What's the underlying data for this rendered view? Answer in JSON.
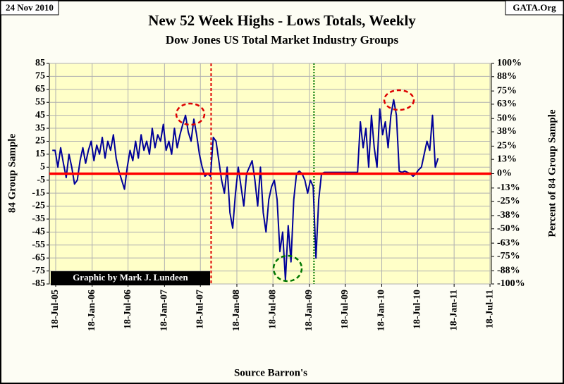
{
  "chart_data": {
    "type": "line",
    "stamp": "24 Nov 2010",
    "source_tag": "GATA.Org",
    "title": "New 52 Week Highs - Lows Totals, Weekly",
    "subtitle": "Dow Jones US Total Market Industry Groups",
    "ylabel": "84 Group Sample",
    "y2label": "Percent of 84 Group Sample",
    "xlabel": "Source Barron's",
    "credit": "Graphic by Mark J. Lundeen",
    "grid": true,
    "xlim": [
      "2005-06-16",
      "2011-07-25"
    ],
    "xticks": [
      {
        "value": "2005-07-18",
        "label": "18-Jul-05"
      },
      {
        "value": "2006-01-18",
        "label": "18-Jan-06"
      },
      {
        "value": "2006-07-18",
        "label": "18-Jul-06"
      },
      {
        "value": "2007-01-18",
        "label": "18-Jan-07"
      },
      {
        "value": "2007-07-18",
        "label": "18-Jul-07"
      },
      {
        "value": "2008-01-18",
        "label": "18-Jan-08"
      },
      {
        "value": "2008-07-18",
        "label": "18-Jul-08"
      },
      {
        "value": "2009-01-18",
        "label": "18-Jan-09"
      },
      {
        "value": "2009-07-18",
        "label": "18-Jul-09"
      },
      {
        "value": "2010-01-18",
        "label": "18-Jan-10"
      },
      {
        "value": "2010-07-18",
        "label": "18-Jul-10"
      },
      {
        "value": "2011-01-18",
        "label": "18-Jan-11"
      },
      {
        "value": "2011-07-18",
        "label": "18-Jul-11"
      }
    ],
    "ylim": [
      -85,
      85
    ],
    "yticks": [
      85,
      75,
      65,
      55,
      45,
      35,
      25,
      15,
      5,
      -5,
      -15,
      -25,
      -35,
      -45,
      -55,
      -65,
      -75,
      -85
    ],
    "y2lim": [
      -100,
      100
    ],
    "y2ticks": [
      {
        "value": 100,
        "label": "100%"
      },
      {
        "value": 88,
        "label": "88%"
      },
      {
        "value": 75,
        "label": "75%"
      },
      {
        "value": 63,
        "label": "63%"
      },
      {
        "value": 50,
        "label": "50%"
      },
      {
        "value": 38,
        "label": "38%"
      },
      {
        "value": 25,
        "label": "25%"
      },
      {
        "value": 13,
        "label": "13%"
      },
      {
        "value": 0,
        "label": "0%"
      },
      {
        "value": -13,
        "label": "-13%"
      },
      {
        "value": -25,
        "label": "-25%"
      },
      {
        "value": -38,
        "label": "-38%"
      },
      {
        "value": -50,
        "label": "-50%"
      },
      {
        "value": -63,
        "label": "-63%"
      },
      {
        "value": -75,
        "label": "-75%"
      },
      {
        "value": -88,
        "label": "-88%"
      },
      {
        "value": -100,
        "label": "-100%"
      }
    ],
    "zero_line_color": "#ff0000",
    "vlines": [
      {
        "x": "2007-09-10",
        "color": "#dd0000"
      },
      {
        "x": "2009-02-10",
        "color": "#007700"
      }
    ],
    "x": [
      "2005-07-01",
      "2005-07-15",
      "2005-07-29",
      "2005-08-12",
      "2005-08-26",
      "2005-09-09",
      "2005-09-23",
      "2005-10-07",
      "2005-10-21",
      "2005-11-04",
      "2005-11-18",
      "2005-12-02",
      "2005-12-16",
      "2005-12-30",
      "2006-01-13",
      "2006-01-27",
      "2006-02-10",
      "2006-02-24",
      "2006-03-10",
      "2006-03-24",
      "2006-04-07",
      "2006-04-21",
      "2006-05-05",
      "2006-05-19",
      "2006-06-02",
      "2006-06-16",
      "2006-06-30",
      "2006-07-14",
      "2006-07-28",
      "2006-08-11",
      "2006-08-25",
      "2006-09-08",
      "2006-09-22",
      "2006-10-06",
      "2006-10-20",
      "2006-11-03",
      "2006-11-17",
      "2006-12-01",
      "2006-12-15",
      "2006-12-29",
      "2007-01-12",
      "2007-01-26",
      "2007-02-09",
      "2007-02-23",
      "2007-03-09",
      "2007-03-23",
      "2007-04-06",
      "2007-04-20",
      "2007-05-04",
      "2007-05-18",
      "2007-06-01",
      "2007-06-15",
      "2007-06-29",
      "2007-07-13",
      "2007-07-27",
      "2007-08-10",
      "2007-08-24",
      "2007-09-07",
      "2007-09-21",
      "2007-10-05",
      "2007-10-19",
      "2007-11-02",
      "2007-11-16",
      "2007-11-30",
      "2007-12-14",
      "2007-12-28",
      "2008-01-11",
      "2008-01-25",
      "2008-02-08",
      "2008-02-22",
      "2008-03-07",
      "2008-03-21",
      "2008-04-04",
      "2008-04-18",
      "2008-05-02",
      "2008-05-16",
      "2008-05-30",
      "2008-06-13",
      "2008-06-27",
      "2008-07-11",
      "2008-07-25",
      "2008-08-08",
      "2008-08-22",
      "2008-09-05",
      "2008-09-19",
      "2008-10-03",
      "2008-10-17",
      "2008-10-31",
      "2008-11-14",
      "2008-11-28",
      "2008-12-12",
      "2008-12-26",
      "2009-01-09",
      "2009-01-23",
      "2009-02-06",
      "2009-02-20",
      "2009-03-06",
      "2009-03-20",
      "2009-04-03",
      "2009-04-17",
      "2009-05-01",
      "2009-05-15",
      "2009-05-29",
      "2009-06-12",
      "2009-06-26",
      "2009-07-10",
      "2009-07-24",
      "2009-08-07",
      "2009-08-21",
      "2009-09-04",
      "2009-09-18",
      "2009-10-02",
      "2009-10-16",
      "2009-10-30",
      "2009-11-13",
      "2009-11-27",
      "2009-12-11",
      "2009-12-25",
      "2010-01-08",
      "2010-01-22",
      "2010-02-05",
      "2010-02-19",
      "2010-03-05",
      "2010-03-19",
      "2010-04-02",
      "2010-04-16",
      "2010-04-30",
      "2010-05-14",
      "2010-05-28",
      "2010-06-11",
      "2010-06-25",
      "2010-07-09",
      "2010-07-23",
      "2010-08-06",
      "2010-08-20",
      "2010-09-03",
      "2010-09-17",
      "2010-10-01",
      "2010-10-15",
      "2010-10-29"
    ],
    "series": [
      {
        "color": "#000099",
        "values": [
          18,
          18,
          5,
          20,
          8,
          -3,
          15,
          5,
          -8,
          -5,
          10,
          20,
          8,
          18,
          25,
          10,
          22,
          15,
          28,
          12,
          25,
          18,
          30,
          12,
          2,
          -5,
          -12,
          5,
          18,
          10,
          25,
          12,
          30,
          18,
          25,
          15,
          35,
          20,
          30,
          25,
          38,
          18,
          25,
          15,
          35,
          20,
          30,
          38,
          45,
          32,
          25,
          42,
          30,
          15,
          5,
          -2,
          0,
          -2,
          28,
          25,
          10,
          -5,
          -15,
          5,
          -30,
          -42,
          -15,
          5,
          -10,
          -25,
          0,
          5,
          10,
          -5,
          -25,
          5,
          -30,
          -45,
          -20,
          -10,
          -5,
          -20,
          -60,
          -45,
          -82,
          -40,
          -68,
          -20,
          0,
          2,
          0,
          -5,
          -15,
          -5,
          -10,
          -65,
          -20,
          0,
          1,
          1,
          1,
          1,
          1,
          1,
          1,
          1,
          1,
          1,
          1,
          1,
          1,
          40,
          20,
          35,
          5,
          45,
          20,
          5,
          50,
          30,
          40,
          20,
          45,
          57,
          45,
          2,
          1,
          2,
          1,
          0,
          -2,
          0,
          3,
          5,
          15,
          25,
          18,
          45,
          5,
          12
        ]
      }
    ]
  }
}
